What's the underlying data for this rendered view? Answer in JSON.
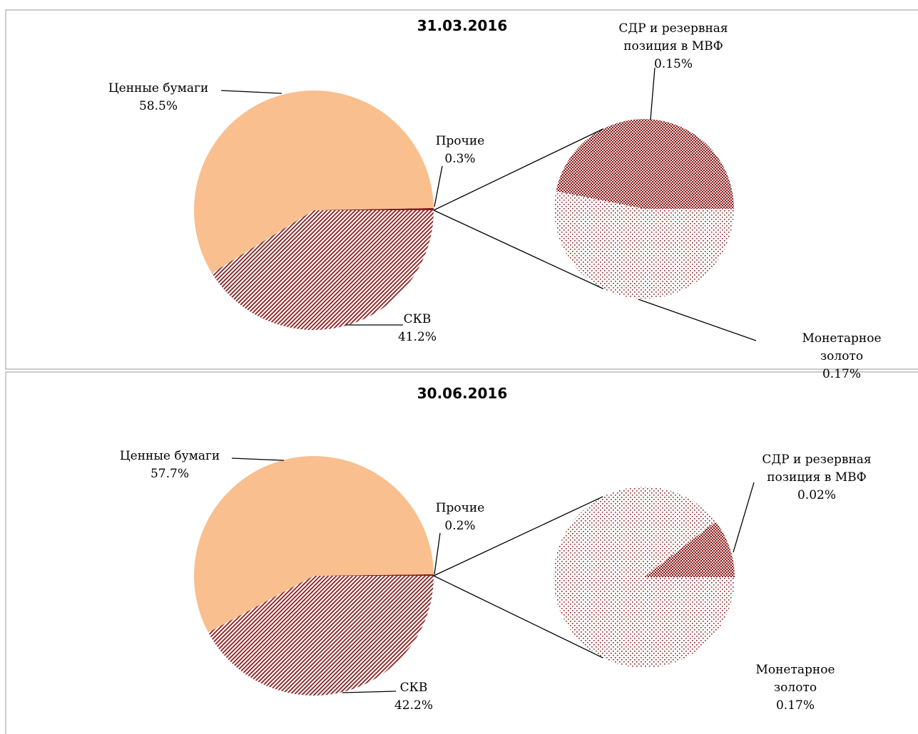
{
  "chart_data": [
    {
      "type": "pie",
      "title": "31.03.2016",
      "categories": [
        "Ценные бумаги",
        "СКВ",
        "Прочие"
      ],
      "values": [
        58.5,
        41.2,
        0.3
      ],
      "value_labels": [
        "58.5%",
        "41.2%",
        "0.3%"
      ],
      "colors": [
        "#f9bf8f",
        "#8b1c1c",
        "#8b1c1c"
      ],
      "sub": {
        "categories": [
          "СДР и резервная позиция в МВФ",
          "Монетарное золото"
        ],
        "values": [
          0.15,
          0.17
        ],
        "value_labels": [
          "0.15%",
          "0.17%"
        ]
      }
    },
    {
      "type": "pie",
      "title": "30.06.2016",
      "categories": [
        "Ценные бумаги",
        "СКВ",
        "Прочие"
      ],
      "values": [
        57.7,
        42.2,
        0.2
      ],
      "value_labels": [
        "57.7%",
        "42.2%",
        "0.2%"
      ],
      "colors": [
        "#f9bf8f",
        "#8b1c1c",
        "#8b1c1c"
      ],
      "sub": {
        "categories": [
          "СДР и резервная позиция в МВФ",
          "Монетарное золото"
        ],
        "values": [
          0.02,
          0.17
        ],
        "value_labels": [
          "0.02%",
          "0.17%"
        ]
      }
    }
  ]
}
